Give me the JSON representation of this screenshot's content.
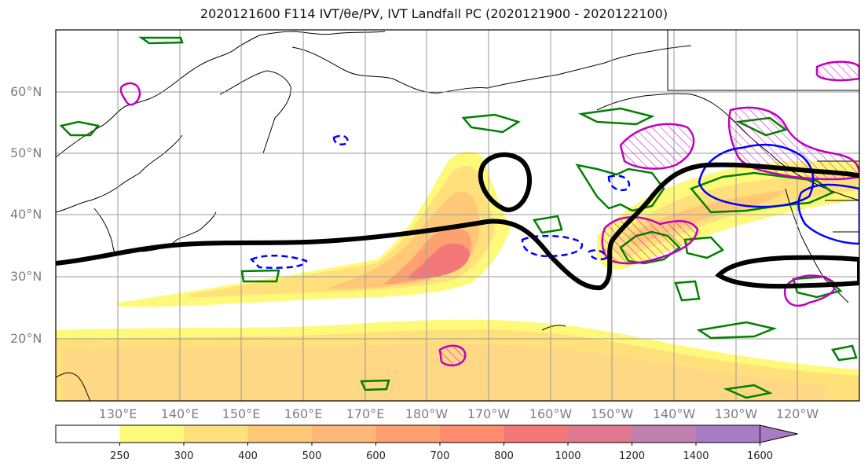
{
  "title": "2020121600 F114 IVT/θe/PV, IVT Landfall PC (2020121900 - 2020122100)",
  "map": {
    "lat_labels": [
      "60°N",
      "50°N",
      "40°N",
      "30°N",
      "20°N"
    ],
    "lon_labels": [
      "130°E",
      "140°E",
      "150°E",
      "160°E",
      "170°E",
      "180°W",
      "170°W",
      "160°W",
      "150°W",
      "140°W",
      "130°W",
      "120°W"
    ],
    "colors": {
      "ocean": "#ffffff",
      "coast": "#000000",
      "grid": "#9a9a9a",
      "theta_contour": "#008000",
      "pv_positive": "#c000c0",
      "pv_negative": "#0000ff",
      "landfall_pc": "#000000"
    }
  },
  "colorbar": {
    "labels": [
      "250",
      "300",
      "400",
      "500",
      "600",
      "700",
      "800",
      "1000",
      "1200",
      "1400",
      "1600"
    ],
    "colors": [
      "#ffffff",
      "#fff97a",
      "#ffe07a",
      "#ffc878",
      "#ffb878",
      "#ffa070",
      "#ff8c6c",
      "#f47878",
      "#e07890",
      "#c080b0",
      "#a87cc4"
    ]
  }
}
